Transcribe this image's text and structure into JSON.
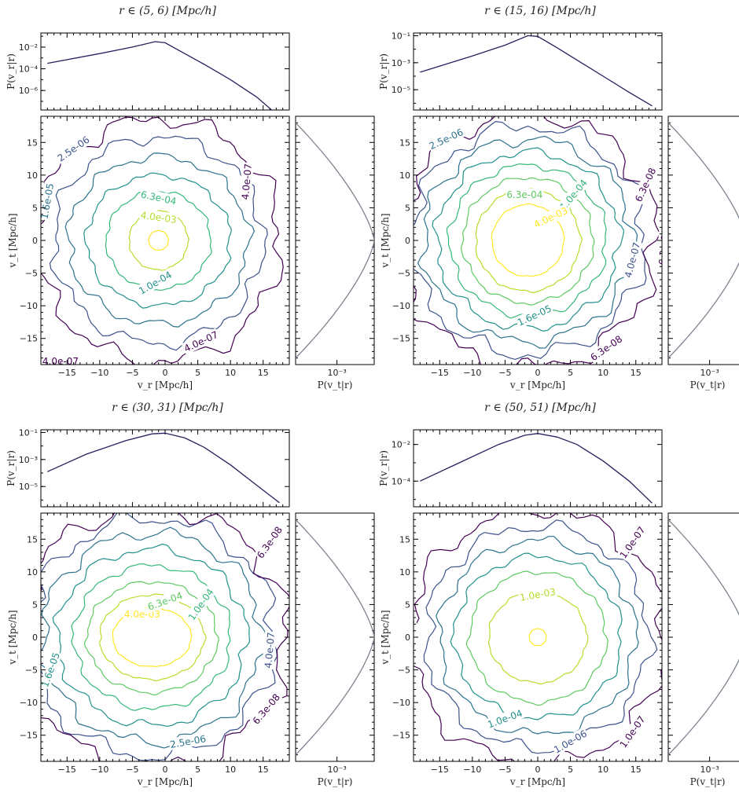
{
  "chart_data": [
    {
      "type": "contour",
      "title": "r ∈ (5, 6)  [Mpc/h]",
      "xlabel": "v_r [Mpc/h]",
      "ylabel": "v_t [Mpc/h]",
      "top_ylabel": "P(v_r|r)",
      "side_xlabel": "P(v_t|r)",
      "xlim": [
        -19,
        19
      ],
      "ylim": [
        -19,
        19
      ],
      "xticks": [
        "-15",
        "-10",
        "-5",
        "0",
        "5",
        "10",
        "15"
      ],
      "yticks": [
        "15",
        "10",
        "5",
        "0",
        "-5",
        "-10",
        "-15"
      ],
      "top_scale": "log",
      "top_ylim_log10": [
        -7.8,
        -0.7
      ],
      "top_yticks": [
        {
          "label": "10^-2",
          "log": -2
        },
        {
          "label": "10^-4",
          "log": -4
        },
        {
          "label": "10^-6",
          "log": -6
        }
      ],
      "side_xticks": [
        {
          "label": "10^-3",
          "log": -3
        }
      ],
      "side_xlim_log10": [
        -5.0,
        -1.2
      ],
      "marginal_r": {
        "v": [
          -18,
          -10,
          -5,
          -1.5,
          0,
          3,
          6,
          10,
          14,
          16.5
        ],
        "logp": [
          -3.5,
          -2.6,
          -2.0,
          -1.5,
          -1.6,
          -2.6,
          -3.6,
          -5.0,
          -6.6,
          -7.9
        ]
      },
      "marginal_t_peak_log10": -1.2,
      "marginal_t_vmax": 18,
      "marginal_t_floor_log10": -5.0,
      "center": [
        -1.0,
        0.0
      ],
      "levels": [
        {
          "label": "",
          "rx": 1.5,
          "ry": 1.5,
          "color": "#fde725"
        },
        {
          "label": "4.0e-03",
          "rx": 4.5,
          "ry": 4.5,
          "color": "#b5de2b"
        },
        {
          "label": "6.3e-04",
          "rx": 8.0,
          "ry": 7.5,
          "color": "#35b779"
        },
        {
          "label": "1.0e-04",
          "rx": 11.0,
          "ry": 10.0,
          "color": "#21918c"
        },
        {
          "label": "1.6e-05",
          "rx": 13.8,
          "ry": 12.8,
          "color": "#2c728e"
        },
        {
          "label": "2.5e-06",
          "rx": 16.0,
          "ry": 15.8,
          "color": "#3b528b"
        },
        {
          "label": "4.0e-07",
          "rx": 18.5,
          "ry": 18.6,
          "color": "#440154"
        }
      ],
      "contour_labels": [
        {
          "text": "2.5e-06",
          "x": -14,
          "y": 14,
          "angle": -35,
          "level": 5
        },
        {
          "text": "6.3e-04",
          "x": -1,
          "y": 6.5,
          "angle": 12,
          "level": 2
        },
        {
          "text": "4.0e-03",
          "x": -1,
          "y": 3.5,
          "angle": 8,
          "level": 1
        },
        {
          "text": "1.0e-04",
          "x": -1.5,
          "y": -6.5,
          "angle": -30,
          "level": 3
        },
        {
          "text": "4.0e-07",
          "x": 12.5,
          "y": 9,
          "angle": -85,
          "level": 6
        },
        {
          "text": "4.0e-07",
          "x": 5.5,
          "y": -15.5,
          "angle": -25,
          "level": 6
        },
        {
          "text": "4.0e-07",
          "x": -16,
          "y": -18.5,
          "angle": 0,
          "level": 6
        },
        {
          "text": "1.6e-05",
          "x": -18,
          "y": 6,
          "angle": -80,
          "level": 4
        }
      ]
    },
    {
      "type": "contour",
      "title": "r ∈ (15, 16)  [Mpc/h]",
      "xlabel": "v_r [Mpc/h]",
      "ylabel": "v_t [Mpc/h]",
      "top_ylabel": "P(v_r|r)",
      "side_xlabel": "P(v_t|r)",
      "xlim": [
        -19,
        19
      ],
      "ylim": [
        -19,
        19
      ],
      "xticks": [
        "-15",
        "-10",
        "-5",
        "0",
        "5",
        "10",
        "15"
      ],
      "yticks": [
        "15",
        "10",
        "5",
        "0",
        "-5",
        "-10",
        "-15"
      ],
      "top_scale": "log",
      "top_ylim_log10": [
        -6.5,
        -0.8
      ],
      "top_yticks": [
        {
          "label": "10^-1",
          "log": -1
        },
        {
          "label": "10^-3",
          "log": -3
        },
        {
          "label": "10^-5",
          "log": -5
        }
      ],
      "side_xticks": [
        {
          "label": "10^-3",
          "log": -3
        }
      ],
      "side_xlim_log10": [
        -5.0,
        -1.2
      ],
      "marginal_r": {
        "v": [
          -18,
          -10,
          -5,
          -1.5,
          0,
          3,
          6,
          10,
          14,
          17.5
        ],
        "logp": [
          -3.7,
          -2.5,
          -1.7,
          -1.0,
          -1.05,
          -1.9,
          -2.8,
          -4.0,
          -5.2,
          -6.2
        ]
      },
      "marginal_t_peak_log10": -1.2,
      "marginal_t_vmax": 18,
      "marginal_t_floor_log10": -5.0,
      "center": [
        -1.5,
        0.0
      ],
      "levels": [
        {
          "label": "4.0e-03",
          "rx": 5.5,
          "ry": 5.5,
          "color": "#fde725"
        },
        {
          "label": "",
          "rx": 8.0,
          "ry": 7.8,
          "color": "#b5de2b"
        },
        {
          "label": "6.3e-04",
          "rx": 10.0,
          "ry": 9.6,
          "color": "#5ec962"
        },
        {
          "label": "1.0e-04",
          "rx": 12.0,
          "ry": 11.5,
          "color": "#35b779"
        },
        {
          "label": "1.6e-05",
          "rx": 14.0,
          "ry": 13.5,
          "color": "#21918c"
        },
        {
          "label": "2.5e-06",
          "rx": 16.0,
          "ry": 15.5,
          "color": "#2c728e"
        },
        {
          "label": "4.0e-07",
          "rx": 17.8,
          "ry": 17.5,
          "color": "#3b528b"
        },
        {
          "label": "6.3e-08",
          "rx": 19.5,
          "ry": 19.5,
          "color": "#440154"
        }
      ],
      "contour_labels": [
        {
          "text": "2.5e-06",
          "x": -14,
          "y": 15.5,
          "angle": -25,
          "level": 5
        },
        {
          "text": "6.3e-04",
          "x": -2,
          "y": 7,
          "angle": 0,
          "level": 2
        },
        {
          "text": "1.0e-04",
          "x": 5.5,
          "y": 7,
          "angle": -50,
          "level": 3
        },
        {
          "text": "4.0e-03",
          "x": 2,
          "y": 3.5,
          "angle": -25,
          "level": 0
        },
        {
          "text": "1.6e-05",
          "x": -0.5,
          "y": -11.5,
          "angle": -25,
          "level": 4
        },
        {
          "text": "4.0e-07",
          "x": 14.5,
          "y": -3,
          "angle": -75,
          "level": 6
        },
        {
          "text": "6.3e-08",
          "x": 16.5,
          "y": 8.5,
          "angle": -65,
          "level": 7
        },
        {
          "text": "6.3e-08",
          "x": 19.3,
          "y": -1,
          "angle": -85,
          "level": 7
        },
        {
          "text": "6.3e-08",
          "x": 10.5,
          "y": -16.5,
          "angle": -35,
          "level": 7
        }
      ]
    },
    {
      "type": "contour",
      "title": "r ∈ (30, 31)  [Mpc/h]",
      "xlabel": "v_r [Mpc/h]",
      "ylabel": "v_t [Mpc/h]",
      "top_ylabel": "P(v_r|r)",
      "side_xlabel": "P(v_t|r)",
      "xlim": [
        -19,
        19
      ],
      "ylim": [
        -19,
        19
      ],
      "xticks": [
        "-15",
        "-10",
        "-5",
        "0",
        "5",
        "10",
        "15"
      ],
      "yticks": [
        "15",
        "10",
        "5",
        "0",
        "-5",
        "-10",
        "-15"
      ],
      "top_scale": "log",
      "top_ylim_log10": [
        -6.5,
        -0.8
      ],
      "top_yticks": [
        {
          "label": "10^-1",
          "log": -1
        },
        {
          "label": "10^-3",
          "log": -3
        },
        {
          "label": "10^-5",
          "log": -5
        }
      ],
      "side_xticks": [
        {
          "label": "10^-3",
          "log": -3
        }
      ],
      "side_xlim_log10": [
        -5.0,
        -1.2
      ],
      "marginal_r": {
        "v": [
          -18,
          -12,
          -6,
          -2,
          0,
          3,
          6,
          10,
          14,
          17.5
        ],
        "logp": [
          -3.9,
          -2.6,
          -1.6,
          -1.1,
          -1.05,
          -1.4,
          -2.1,
          -3.4,
          -4.9,
          -6.2
        ]
      },
      "marginal_t_peak_log10": -1.2,
      "marginal_t_vmax": 18,
      "marginal_t_floor_log10": -5.0,
      "center": [
        -2.0,
        0.0
      ],
      "levels": [
        {
          "label": "4.0e-03",
          "rx": 6.0,
          "ry": 4.5,
          "color": "#fde725"
        },
        {
          "label": "",
          "rx": 8.0,
          "ry": 6.5,
          "color": "#b5de2b"
        },
        {
          "label": "6.3e-04",
          "rx": 10.0,
          "ry": 8.5,
          "color": "#5ec962"
        },
        {
          "label": "1.0e-04",
          "rx": 12.0,
          "ry": 11.0,
          "color": "#35b779"
        },
        {
          "label": "1.6e-05",
          "rx": 14.5,
          "ry": 13.5,
          "color": "#21918c"
        },
        {
          "label": "2.5e-06",
          "rx": 16.8,
          "ry": 16.0,
          "color": "#2c728e"
        },
        {
          "label": "4.0e-07",
          "rx": 18.8,
          "ry": 18.2,
          "color": "#3b528b"
        },
        {
          "label": "6.3e-08",
          "rx": 20.5,
          "ry": 20.0,
          "color": "#440154"
        }
      ],
      "contour_labels": [
        {
          "text": "4.0e-03",
          "x": -3.5,
          "y": 3.5,
          "angle": 0,
          "level": 0
        },
        {
          "text": "6.3e-04",
          "x": 0,
          "y": 5.5,
          "angle": -20,
          "level": 2
        },
        {
          "text": "1.0e-04",
          "x": 5.5,
          "y": 5,
          "angle": -55,
          "level": 3
        },
        {
          "text": "1.6e-05",
          "x": -17.5,
          "y": -5,
          "angle": -70,
          "level": 4
        },
        {
          "text": "2.5e-06",
          "x": 3.5,
          "y": -16,
          "angle": -10,
          "level": 5
        },
        {
          "text": "4.0e-07",
          "x": 16,
          "y": -2,
          "angle": -85,
          "level": 6
        },
        {
          "text": "6.3e-08",
          "x": 16,
          "y": 14.5,
          "angle": -55,
          "level": 7
        },
        {
          "text": "6.3e-08",
          "x": 15.5,
          "y": -11,
          "angle": -50,
          "level": 7
        }
      ]
    },
    {
      "type": "contour",
      "title": "r ∈ (50, 51)  [Mpc/h]",
      "xlabel": "v_r [Mpc/h]",
      "ylabel": "v_t [Mpc/h]",
      "top_ylabel": "P(v_r|r)",
      "side_xlabel": "P(v_t|r)",
      "xlim": [
        -19,
        19
      ],
      "ylim": [
        -19,
        19
      ],
      "xticks": [
        "-15",
        "-10",
        "-5",
        "0",
        "5",
        "10",
        "15"
      ],
      "yticks": [
        "15",
        "10",
        "5",
        "0",
        "-5",
        "-10",
        "-15"
      ],
      "top_scale": "log",
      "top_ylim_log10": [
        -5.4,
        -1.2
      ],
      "top_yticks": [
        {
          "label": "10^-2",
          "log": -2
        },
        {
          "label": "10^-4",
          "log": -4
        }
      ],
      "side_xticks": [
        {
          "label": "10^-3",
          "log": -3
        }
      ],
      "side_xlim_log10": [
        -5.0,
        -1.2
      ],
      "marginal_r": {
        "v": [
          -18,
          -12,
          -6,
          -2,
          0,
          3,
          6,
          10,
          14,
          17.5
        ],
        "logp": [
          -4.0,
          -3.0,
          -2.0,
          -1.5,
          -1.4,
          -1.6,
          -2.0,
          -2.9,
          -4.0,
          -5.2
        ]
      },
      "marginal_t_peak_log10": -1.2,
      "marginal_t_vmax": 18,
      "marginal_t_floor_log10": -5.0,
      "center": [
        0.0,
        0.0
      ],
      "levels": [
        {
          "label": "",
          "rx": 1.3,
          "ry": 1.3,
          "color": "#fde725"
        },
        {
          "label": "1.0e-03",
          "rx": 7.5,
          "ry": 7.0,
          "color": "#b5de2b"
        },
        {
          "label": "",
          "rx": 10.5,
          "ry": 10.0,
          "color": "#5ec962"
        },
        {
          "label": "1.0e-04",
          "rx": 12.8,
          "ry": 12.4,
          "color": "#21918c"
        },
        {
          "label": "",
          "rx": 15.0,
          "ry": 14.8,
          "color": "#2c728e"
        },
        {
          "label": "1.0e-06",
          "rx": 17.0,
          "ry": 17.0,
          "color": "#3b528b"
        },
        {
          "label": "1.0e-07",
          "rx": 19.5,
          "ry": 19.5,
          "color": "#440154"
        }
      ],
      "contour_labels": [
        {
          "text": "1.0e-03",
          "x": 0,
          "y": 6.5,
          "angle": -10,
          "level": 1
        },
        {
          "text": "1.0e-04",
          "x": -5,
          "y": -12.5,
          "angle": -20,
          "level": 3
        },
        {
          "text": "1.0e-04",
          "x": -19.5,
          "y": 0,
          "angle": 90,
          "level": 3
        },
        {
          "text": "1.0e-06",
          "x": 5,
          "y": -16,
          "angle": -30,
          "level": 5
        },
        {
          "text": "1.0e-07",
          "x": 14.5,
          "y": 14.5,
          "angle": -55,
          "level": 6
        },
        {
          "text": "1.0e-07",
          "x": 14.5,
          "y": -14.5,
          "angle": -55,
          "level": 6
        }
      ]
    }
  ]
}
